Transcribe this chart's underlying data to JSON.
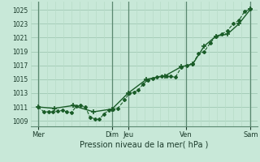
{
  "background_color": "#c8e8d8",
  "grid_major_color": "#a0c8b4",
  "grid_minor_color": "#b8dcc8",
  "line_color": "#1a5c28",
  "title": "Pression niveau de la mer( hPa )",
  "ylabel_ticks": [
    1009,
    1011,
    1013,
    1015,
    1017,
    1019,
    1021,
    1023,
    1025
  ],
  "ylim": [
    1008.2,
    1026.2
  ],
  "xlim": [
    0.0,
    9.8
  ],
  "xtick_positions": [
    0.3,
    3.5,
    4.2,
    6.7,
    9.5
  ],
  "xtick_labels": [
    "Mer",
    "Dim",
    "Jeu",
    "Ven",
    "Sam"
  ],
  "vline_positions": [
    0.3,
    3.5,
    4.2,
    6.7,
    9.5
  ],
  "series1_x": [
    0.3,
    0.55,
    0.75,
    0.95,
    1.15,
    1.35,
    1.55,
    1.75,
    1.95,
    2.15,
    2.35,
    2.55,
    2.75,
    2.95,
    3.15,
    3.35,
    3.55,
    3.75,
    4.05,
    4.25,
    4.45,
    4.65,
    4.85,
    5.05,
    5.25,
    5.45,
    5.65,
    5.85,
    6.05,
    6.25,
    6.5,
    6.75,
    7.0,
    7.25,
    7.5,
    7.75,
    8.0,
    8.25,
    8.5,
    8.75,
    9.0,
    9.25,
    9.5
  ],
  "series1_y": [
    1011.0,
    1010.3,
    1010.3,
    1010.3,
    1010.4,
    1010.5,
    1010.3,
    1010.2,
    1011.1,
    1011.2,
    1011.0,
    1009.5,
    1009.3,
    1009.2,
    1010.0,
    1010.5,
    1010.7,
    1010.8,
    1012.0,
    1013.0,
    1013.1,
    1013.5,
    1014.3,
    1014.9,
    1015.1,
    1015.3,
    1015.5,
    1015.4,
    1015.4,
    1015.3,
    1016.7,
    1017.0,
    1017.2,
    1018.7,
    1019.0,
    1020.2,
    1021.2,
    1021.5,
    1022.0,
    1023.0,
    1023.5,
    1024.8,
    1025.1
  ],
  "series2_x": [
    0.3,
    1.0,
    1.8,
    2.7,
    3.5,
    4.2,
    5.0,
    5.8,
    6.5,
    7.0,
    7.5,
    8.0,
    8.5,
    9.0,
    9.5
  ],
  "series2_y": [
    1011.0,
    1010.8,
    1011.2,
    1010.3,
    1010.7,
    1013.0,
    1015.0,
    1015.5,
    1016.8,
    1017.2,
    1019.8,
    1021.2,
    1021.5,
    1023.0,
    1025.1
  ]
}
